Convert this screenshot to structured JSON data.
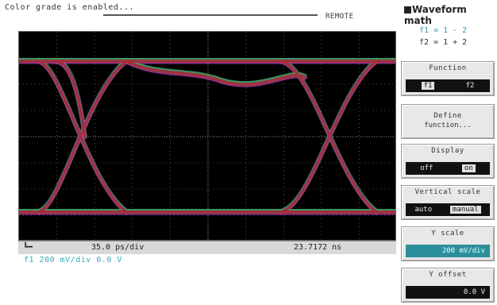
{
  "status": {
    "message": "Color grade is enabled...",
    "remote": "REMOTE"
  },
  "panel": {
    "title": "Waveform math",
    "f1_def": "f1 = 1 - 2",
    "f2_def": "f2 = 1 + 2"
  },
  "softkeys": {
    "function": {
      "label": "Function",
      "opt1": "f1",
      "opt2": "f2",
      "selected": "f1"
    },
    "define": {
      "line1": "Define",
      "line2": "function..."
    },
    "display": {
      "label": "Display",
      "opt1": "off",
      "opt2": "on",
      "selected": "on"
    },
    "vscale_mode": {
      "label": "Vertical scale",
      "opt1": "auto",
      "opt2": "manual",
      "selected": "manual"
    },
    "yscale": {
      "label": "Y scale",
      "value": "200 mV/div"
    },
    "yoffset": {
      "label": "Y offset",
      "value": "0.0 V"
    }
  },
  "readout": {
    "timebase": "35.0 ps/div",
    "time_position": "23.7172 ns",
    "channel": "f1 200 mV/div   0.0 V"
  },
  "colors": {
    "trace_red": "#a0303a",
    "trace_magenta": "#c040c0",
    "trace_cyan": "#40c8d0",
    "trace_green": "#40a060",
    "grid": "#888888"
  }
}
